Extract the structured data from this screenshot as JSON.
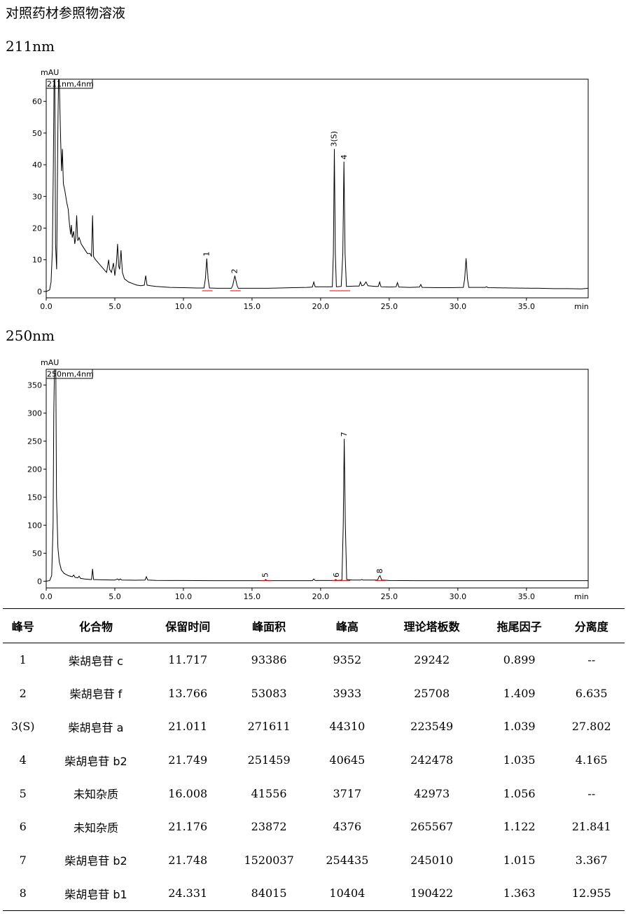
{
  "page": {
    "title": "对照药材参照物溶液",
    "label_211": "211nm",
    "label_250": "250nm"
  },
  "chart_data": [
    {
      "type": "line",
      "panel_label": "211nm",
      "yunit": "mAU",
      "xunit": "min",
      "legend_box": "211nm,4nm",
      "xlim": [
        0,
        39.5
      ],
      "ylim": [
        -2,
        67
      ],
      "xticks": [
        0.0,
        5.0,
        10.0,
        15.0,
        20.0,
        25.0,
        30.0,
        35.0
      ],
      "xtick_labels": [
        "0.0",
        "5.0",
        "10.0",
        "15.0",
        "20.0",
        "25.0",
        "30.0",
        "35.0"
      ],
      "yticks": [
        0,
        10,
        20,
        30,
        40,
        50,
        60
      ],
      "ytick_labels": [
        "0",
        "10",
        "20",
        "30",
        "40",
        "50",
        "60"
      ],
      "baseline": [
        [
          0,
          0
        ],
        [
          0.25,
          0.5
        ],
        [
          0.35,
          3
        ],
        [
          0.45,
          13
        ],
        [
          0.52,
          40
        ],
        [
          0.57,
          67
        ],
        [
          0.63,
          67
        ],
        [
          0.68,
          15
        ],
        [
          0.76,
          7
        ],
        [
          0.85,
          52
        ],
        [
          0.9,
          67
        ],
        [
          0.95,
          67
        ],
        [
          1.05,
          48
        ],
        [
          1.12,
          38
        ],
        [
          1.18,
          45
        ],
        [
          1.25,
          34
        ],
        [
          1.35,
          32
        ],
        [
          1.5,
          28
        ],
        [
          1.6,
          26
        ],
        [
          1.7,
          21
        ],
        [
          1.78,
          18
        ],
        [
          1.83,
          21
        ],
        [
          1.9,
          17
        ],
        [
          2.0,
          19
        ],
        [
          2.08,
          15
        ],
        [
          2.15,
          17
        ],
        [
          2.22,
          24
        ],
        [
          2.3,
          16
        ],
        [
          2.4,
          17
        ],
        [
          2.55,
          15
        ],
        [
          2.7,
          14
        ],
        [
          2.85,
          13
        ],
        [
          3.0,
          12
        ],
        [
          3.2,
          12
        ],
        [
          3.3,
          11
        ],
        [
          3.38,
          24
        ],
        [
          3.45,
          11
        ],
        [
          3.6,
          10
        ],
        [
          3.8,
          9
        ],
        [
          4.0,
          8
        ],
        [
          4.2,
          7
        ],
        [
          4.4,
          6
        ],
        [
          4.55,
          10
        ],
        [
          4.62,
          7
        ],
        [
          4.75,
          6
        ],
        [
          4.9,
          9
        ],
        [
          5.0,
          5
        ],
        [
          5.12,
          9
        ],
        [
          5.2,
          15
        ],
        [
          5.28,
          8
        ],
        [
          5.35,
          7
        ],
        [
          5.45,
          13
        ],
        [
          5.55,
          6
        ],
        [
          5.7,
          4
        ],
        [
          6.0,
          3
        ],
        [
          6.3,
          2.5
        ],
        [
          6.6,
          2
        ],
        [
          6.9,
          1.8
        ],
        [
          7.15,
          2
        ],
        [
          7.25,
          5
        ],
        [
          7.35,
          2
        ],
        [
          7.6,
          1.8
        ],
        [
          8.0,
          1.6
        ],
        [
          8.4,
          1.5
        ],
        [
          9.0,
          1.3
        ],
        [
          10.0,
          1.2
        ],
        [
          11.0,
          1.1
        ],
        [
          11.5,
          1.1
        ],
        [
          11.6,
          4
        ],
        [
          11.7,
          10.4
        ],
        [
          11.8,
          4
        ],
        [
          11.9,
          1.1
        ],
        [
          12.5,
          1.0
        ],
        [
          13.5,
          1.0
        ],
        [
          13.6,
          2
        ],
        [
          13.75,
          5
        ],
        [
          13.9,
          2
        ],
        [
          14.0,
          1.0
        ],
        [
          15.0,
          1.0
        ],
        [
          16.0,
          1.0
        ],
        [
          17.0,
          1.1
        ],
        [
          18.0,
          1.2
        ],
        [
          19.0,
          1.3
        ],
        [
          19.4,
          1.4
        ],
        [
          19.5,
          3
        ],
        [
          19.6,
          1.5
        ],
        [
          20.5,
          1.5
        ],
        [
          20.85,
          1.5
        ],
        [
          20.93,
          12
        ],
        [
          21.0,
          45
        ],
        [
          21.07,
          12
        ],
        [
          21.15,
          1.5
        ],
        [
          21.5,
          1.6
        ],
        [
          21.62,
          12
        ],
        [
          21.7,
          41
        ],
        [
          21.78,
          12
        ],
        [
          21.88,
          1.6
        ],
        [
          22.5,
          1.7
        ],
        [
          22.8,
          1.7
        ],
        [
          22.9,
          3
        ],
        [
          23.0,
          1.8
        ],
        [
          23.15,
          2
        ],
        [
          23.3,
          3
        ],
        [
          23.45,
          1.8
        ],
        [
          24.0,
          1.6
        ],
        [
          24.2,
          1.6
        ],
        [
          24.3,
          3
        ],
        [
          24.4,
          1.5
        ],
        [
          25.0,
          1.4
        ],
        [
          25.5,
          1.5
        ],
        [
          25.6,
          2.8
        ],
        [
          25.7,
          1.4
        ],
        [
          26.5,
          1.3
        ],
        [
          27.2,
          1.4
        ],
        [
          27.3,
          2.2
        ],
        [
          27.4,
          1.3
        ],
        [
          28.5,
          1.2
        ],
        [
          29.5,
          1.2
        ],
        [
          30.4,
          1.3
        ],
        [
          30.5,
          4
        ],
        [
          30.6,
          10.5
        ],
        [
          30.7,
          4
        ],
        [
          30.8,
          1.3
        ],
        [
          32.0,
          1.3
        ],
        [
          32.1,
          1.5
        ],
        [
          32.2,
          1.2
        ],
        [
          34.0,
          1.1
        ],
        [
          36.0,
          1.0
        ],
        [
          37.0,
          0.9
        ],
        [
          38.0,
          0.9
        ],
        [
          39.0,
          0.8
        ],
        [
          39.5,
          1.0
        ]
      ],
      "peak_labels": [
        {
          "label": "1",
          "x": 11.717,
          "y": 10.4
        },
        {
          "label": "2",
          "x": 13.766,
          "y": 5.0
        },
        {
          "label": "3(S)",
          "x": 21.011,
          "y": 45.0
        },
        {
          "label": "4",
          "x": 21.749,
          "y": 41.0
        }
      ]
    },
    {
      "type": "line",
      "panel_label": "250nm",
      "yunit": "mAU",
      "xunit": "min",
      "legend_box": "250nm,4nm",
      "xlim": [
        0,
        39.5
      ],
      "ylim": [
        -12,
        378
      ],
      "xticks": [
        0.0,
        5.0,
        10.0,
        15.0,
        20.0,
        25.0,
        30.0,
        35.0
      ],
      "xtick_labels": [
        "0.0",
        "5.0",
        "10.0",
        "15.0",
        "20.0",
        "25.0",
        "30.0",
        "35.0"
      ],
      "yticks": [
        0,
        50,
        100,
        150,
        200,
        250,
        300,
        350
      ],
      "ytick_labels": [
        "0",
        "50",
        "100",
        "150",
        "200",
        "250",
        "300",
        "350"
      ],
      "baseline": [
        [
          0,
          0
        ],
        [
          0.25,
          1
        ],
        [
          0.4,
          10
        ],
        [
          0.5,
          100
        ],
        [
          0.55,
          300
        ],
        [
          0.6,
          378
        ],
        [
          0.7,
          378
        ],
        [
          0.75,
          150
        ],
        [
          0.85,
          60
        ],
        [
          0.95,
          35
        ],
        [
          1.1,
          20
        ],
        [
          1.3,
          14
        ],
        [
          1.6,
          10
        ],
        [
          1.9,
          8
        ],
        [
          2.0,
          11
        ],
        [
          2.1,
          7
        ],
        [
          2.3,
          6
        ],
        [
          2.4,
          9
        ],
        [
          2.5,
          5
        ],
        [
          2.8,
          4
        ],
        [
          3.2,
          3
        ],
        [
          3.3,
          3
        ],
        [
          3.38,
          22
        ],
        [
          3.45,
          3
        ],
        [
          4.0,
          2.5
        ],
        [
          5.0,
          2
        ],
        [
          5.2,
          4
        ],
        [
          5.3,
          2
        ],
        [
          5.4,
          4
        ],
        [
          5.5,
          2
        ],
        [
          6.5,
          1.8
        ],
        [
          7.2,
          2
        ],
        [
          7.3,
          8
        ],
        [
          7.4,
          2
        ],
        [
          8.0,
          1.5
        ],
        [
          9.0,
          1.3
        ],
        [
          10.0,
          1.2
        ],
        [
          12.0,
          1
        ],
        [
          14.0,
          1
        ],
        [
          15.0,
          1
        ],
        [
          15.9,
          1
        ],
        [
          16.0,
          3
        ],
        [
          16.1,
          1
        ],
        [
          17.5,
          1
        ],
        [
          19.4,
          1
        ],
        [
          19.5,
          4
        ],
        [
          19.6,
          1.2
        ],
        [
          21.0,
          1.2
        ],
        [
          21.1,
          3
        ],
        [
          21.2,
          1.2
        ],
        [
          21.55,
          2
        ],
        [
          21.65,
          100
        ],
        [
          21.72,
          254
        ],
        [
          21.8,
          100
        ],
        [
          21.9,
          3
        ],
        [
          22.3,
          2
        ],
        [
          22.9,
          2
        ],
        [
          23.0,
          3
        ],
        [
          23.1,
          2
        ],
        [
          24.15,
          2
        ],
        [
          24.25,
          8
        ],
        [
          24.33,
          10
        ],
        [
          24.45,
          2
        ],
        [
          25.0,
          1.2
        ],
        [
          27.0,
          1
        ],
        [
          30.0,
          1
        ],
        [
          33.0,
          1
        ],
        [
          36.0,
          1
        ],
        [
          39.5,
          1
        ]
      ],
      "peak_labels": [
        {
          "label": "5",
          "x": 16.008,
          "y": 3
        },
        {
          "label": "6",
          "x": 21.176,
          "y": 3
        },
        {
          "label": "7",
          "x": 21.748,
          "y": 254
        },
        {
          "label": "8",
          "x": 24.331,
          "y": 10
        }
      ]
    }
  ],
  "table": {
    "headers": [
      "峰号",
      "化合物",
      "保留时间",
      "峰面积",
      "峰高",
      "理论塔板数",
      "拖尾因子",
      "分离度"
    ],
    "rows": [
      [
        "1",
        "柴胡皂苷 c",
        "11.717",
        "93386",
        "9352",
        "29242",
        "0.899",
        "--"
      ],
      [
        "2",
        "柴胡皂苷 f",
        "13.766",
        "53083",
        "3933",
        "25708",
        "1.409",
        "6.635"
      ],
      [
        "3(S)",
        "柴胡皂苷 a",
        "21.011",
        "271611",
        "44310",
        "223549",
        "1.039",
        "27.802"
      ],
      [
        "4",
        "柴胡皂苷 b2",
        "21.749",
        "251459",
        "40645",
        "242478",
        "1.035",
        "4.165"
      ],
      [
        "5",
        "未知杂质",
        "16.008",
        "41556",
        "3717",
        "42973",
        "1.056",
        "--"
      ],
      [
        "6",
        "未知杂质",
        "21.176",
        "23872",
        "4376",
        "265567",
        "1.122",
        "21.841"
      ],
      [
        "7",
        "柴胡皂苷 b2",
        "21.748",
        "1520037",
        "254435",
        "245010",
        "1.015",
        "3.367"
      ],
      [
        "8",
        "柴胡皂苷 b1",
        "24.331",
        "84015",
        "10404",
        "190422",
        "1.363",
        "12.955"
      ]
    ]
  }
}
